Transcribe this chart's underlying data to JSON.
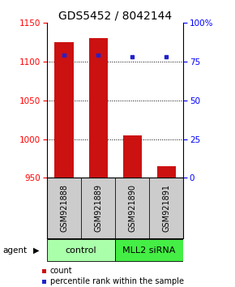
{
  "title": "GDS5452 / 8042144",
  "samples": [
    "GSM921888",
    "GSM921889",
    "GSM921890",
    "GSM921891"
  ],
  "counts": [
    1125,
    1130,
    1005,
    965
  ],
  "percentiles": [
    79,
    79,
    78,
    78
  ],
  "ylim_left": [
    950,
    1150
  ],
  "ylim_right": [
    0,
    100
  ],
  "yticks_left": [
    950,
    1000,
    1050,
    1100,
    1150
  ],
  "yticks_right": [
    0,
    25,
    50,
    75,
    100
  ],
  "ytick_labels_right": [
    "0",
    "25",
    "50",
    "75",
    "100%"
  ],
  "grid_lines": [
    1000,
    1050,
    1100
  ],
  "baseline": 950,
  "bar_color": "#cc1111",
  "dot_color": "#2222cc",
  "groups": [
    {
      "label": "control",
      "indices": [
        0,
        1
      ],
      "color": "#aaffaa"
    },
    {
      "label": "MLL2 siRNA",
      "indices": [
        2,
        3
      ],
      "color": "#44ee44"
    }
  ],
  "sample_box_color": "#cccccc",
  "title_fontsize": 10,
  "tick_fontsize": 7.5,
  "label_fontsize": 7,
  "bar_width": 0.55,
  "legend_red_label": "count",
  "legend_blue_label": "percentile rank within the sample",
  "agent_label": "agent"
}
